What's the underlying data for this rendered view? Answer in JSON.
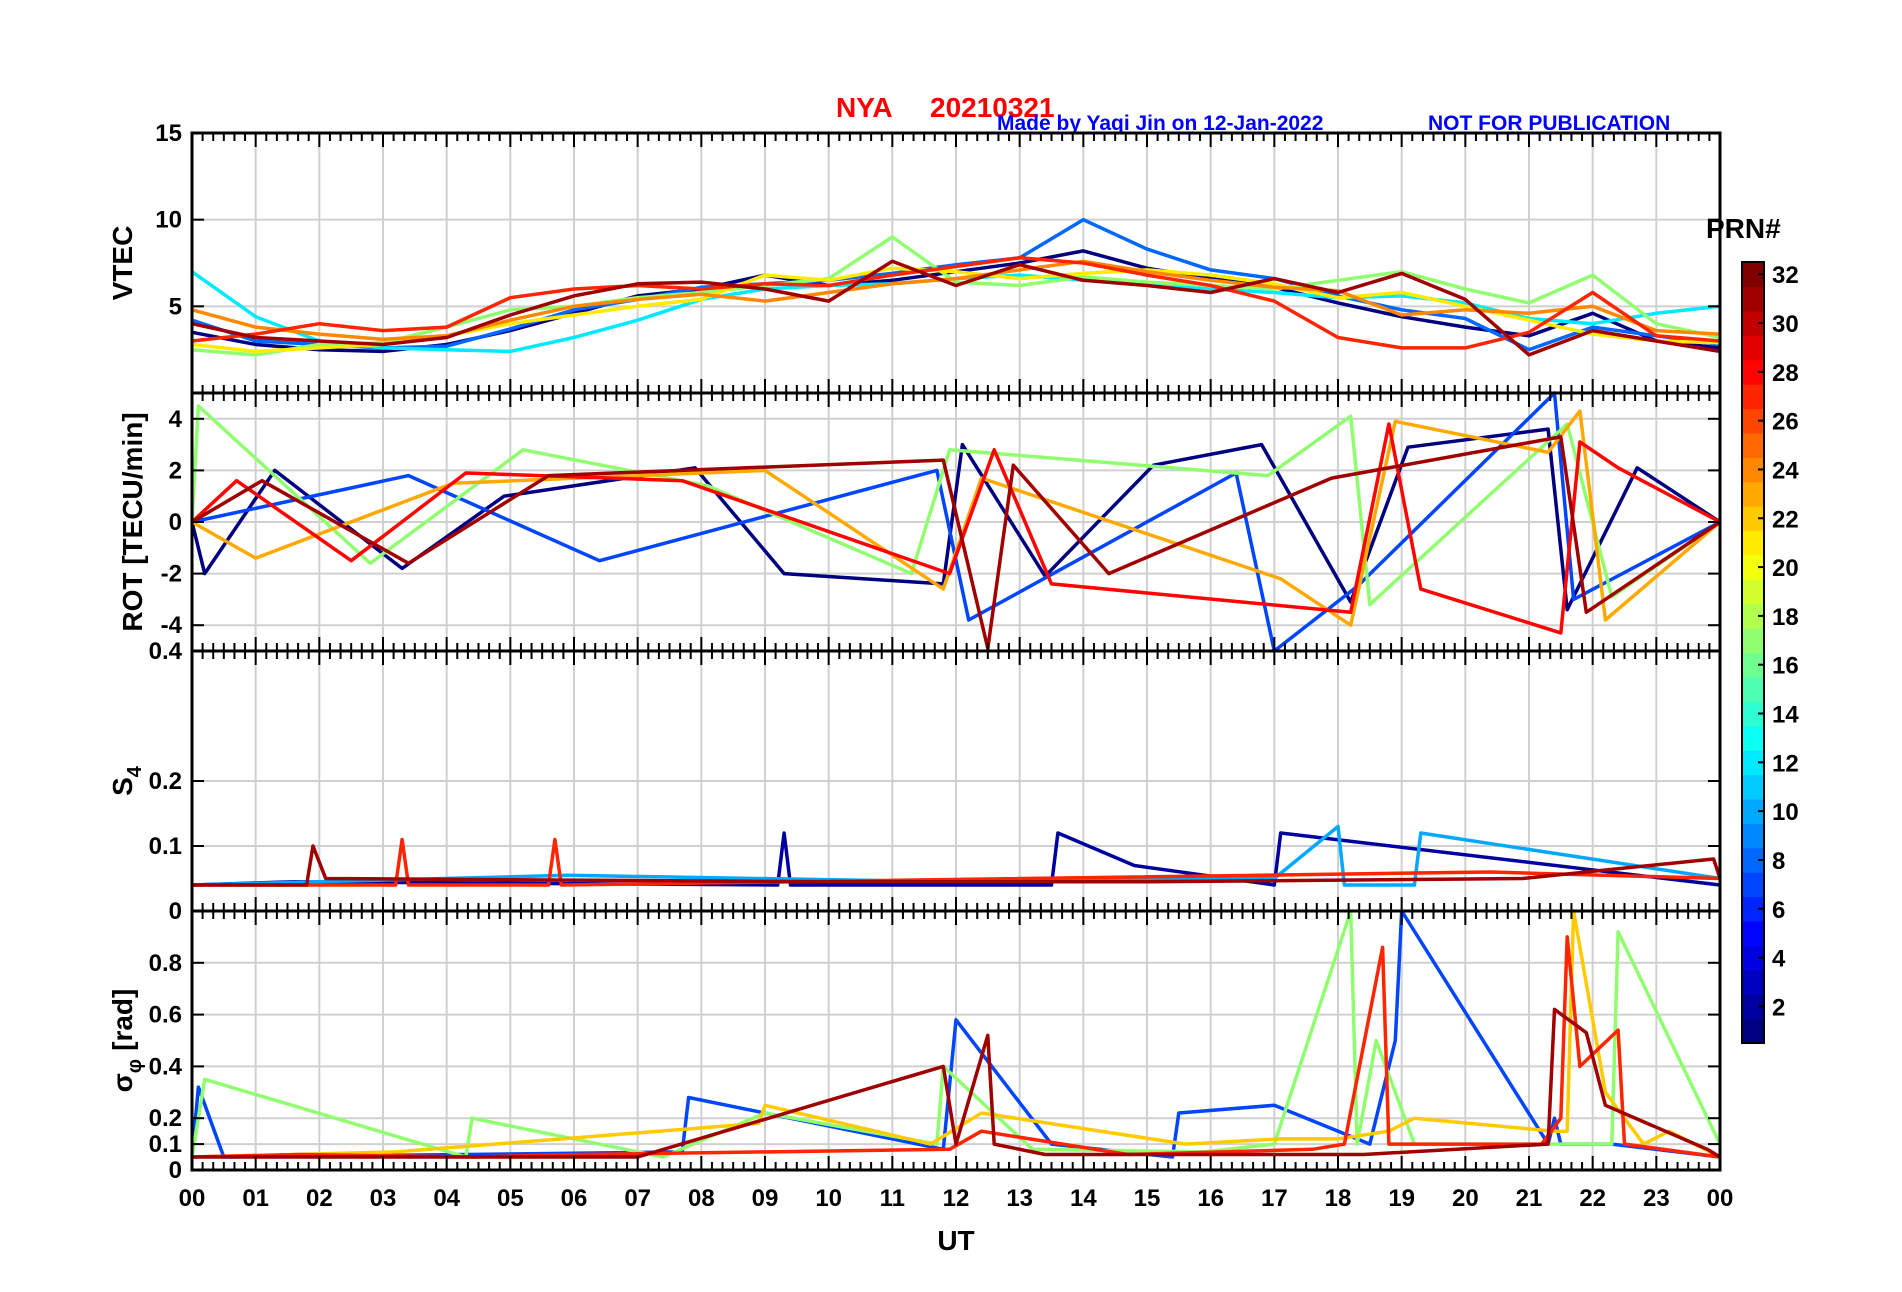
{
  "title": {
    "station": "NYA",
    "date": "20210321",
    "credit": "Made by Yaqi Jin on 12-Jan-2022",
    "notice": "NOT FOR PUBLICATION"
  },
  "colors": {
    "title": "#ff0000",
    "credit": "#0000ff",
    "grid": "#d0d0d0"
  },
  "x_axis": {
    "label": "UT",
    "ticks": [
      "00",
      "01",
      "02",
      "03",
      "04",
      "05",
      "06",
      "07",
      "08",
      "09",
      "10",
      "11",
      "12",
      "13",
      "14",
      "15",
      "16",
      "17",
      "18",
      "19",
      "20",
      "21",
      "22",
      "23",
      "00"
    ]
  },
  "panels": [
    {
      "ylabel": "VTEC",
      "ylim": [
        0,
        15
      ],
      "yticks": [
        5,
        10,
        15
      ],
      "tick_labels": [
        "5",
        "10",
        "15"
      ]
    },
    {
      "ylabel": "ROT [TECU/min]",
      "ylim": [
        -5,
        5
      ],
      "yticks": [
        -4,
        -2,
        0,
        2,
        4
      ],
      "tick_labels": [
        "-4",
        "-2",
        "0",
        "2",
        "4"
      ]
    },
    {
      "ylabel": "S",
      "ylabel_sub": "4",
      "ylim": [
        0,
        0.4
      ],
      "yticks": [
        0,
        0.1,
        0.2,
        0.4
      ],
      "tick_labels": [
        "0",
        "0.1",
        "0.2",
        "0.4"
      ]
    },
    {
      "ylabel": "σ",
      "ylabel_sub": "φ",
      "ylabel_suffix": "[rad]",
      "ylim": [
        0,
        1
      ],
      "yticks": [
        0,
        0.1,
        0.2,
        0.4,
        0.6,
        0.8
      ],
      "tick_labels": [
        "0",
        "0.1",
        "0.2",
        "0.4",
        "0.6",
        "0.8"
      ]
    }
  ],
  "colorbar": {
    "label": "PRN#",
    "range": [
      1,
      32
    ],
    "tick_labels": [
      "2",
      "4",
      "6",
      "8",
      "10",
      "12",
      "14",
      "16",
      "18",
      "20",
      "22",
      "24",
      "26",
      "28",
      "30",
      "32"
    ],
    "colormap": "jet"
  },
  "chart_data": [
    {
      "type": "line",
      "panel": "VTEC",
      "x_range_hours": [
        0,
        24
      ],
      "ylim": [
        0,
        15
      ],
      "series_note": "",
      "series": [
        {
          "prn": 1,
          "x": [
            0,
            1,
            2,
            3,
            4,
            5,
            6,
            7,
            8,
            9,
            10,
            11,
            12,
            13,
            14,
            15,
            16,
            17,
            18,
            19,
            20,
            21,
            22,
            23,
            24
          ],
          "values": [
            3.5,
            2.8,
            2.5,
            2.4,
            2.8,
            3.6,
            4.6,
            5.6,
            6.0,
            6.8,
            6.2,
            6.5,
            7.0,
            7.5,
            8.2,
            7.2,
            6.6,
            6.1,
            5.2,
            4.4,
            3.8,
            3.3,
            4.6,
            3.0,
            2.6
          ]
        },
        {
          "prn": 8,
          "x": [
            0,
            1,
            2,
            3,
            4,
            5,
            6,
            7,
            8,
            9,
            10,
            11,
            12,
            13,
            14,
            15,
            16,
            17,
            18,
            19,
            20,
            21,
            22,
            23,
            24
          ],
          "values": [
            4.2,
            3.0,
            2.8,
            2.6,
            2.7,
            3.7,
            4.8,
            5.4,
            6.1,
            6.3,
            6.5,
            6.9,
            7.4,
            7.8,
            10.0,
            8.3,
            7.1,
            6.6,
            5.6,
            4.8,
            4.3,
            2.5,
            3.8,
            3.3,
            2.8
          ]
        },
        {
          "prn": 12,
          "x": [
            0,
            1,
            2,
            3,
            4,
            5,
            6,
            7,
            8,
            9,
            10,
            11,
            12,
            13,
            14,
            15,
            16,
            17,
            18,
            19,
            20,
            21,
            22,
            23,
            24
          ],
          "values": [
            7.0,
            4.4,
            3.0,
            2.6,
            2.5,
            2.4,
            3.2,
            4.2,
            5.4,
            6.0,
            6.2,
            6.3,
            6.6,
            6.8,
            6.5,
            6.3,
            6.0,
            5.8,
            5.5,
            5.6,
            5.2,
            4.3,
            4.0,
            4.6,
            5.0
          ]
        },
        {
          "prn": 17,
          "x": [
            0,
            1,
            2,
            3,
            4,
            5,
            6,
            7,
            8,
            9,
            10,
            11,
            12,
            13,
            14,
            15,
            16,
            17,
            18,
            19,
            20,
            21,
            22,
            23,
            24
          ],
          "values": [
            2.5,
            2.2,
            2.8,
            2.9,
            3.8,
            4.8,
            5.0,
            5.5,
            5.8,
            6.2,
            6.6,
            9.0,
            6.4,
            6.2,
            6.7,
            6.4,
            6.2,
            6.0,
            6.5,
            7.0,
            6.0,
            5.2,
            6.8,
            4.0,
            3.2
          ]
        },
        {
          "prn": 21,
          "x": [
            0,
            1,
            2,
            3,
            4,
            5,
            6,
            7,
            8,
            9,
            10,
            11,
            12,
            13,
            14,
            15,
            16,
            17,
            18,
            19,
            20,
            21,
            22,
            23,
            24
          ],
          "values": [
            2.8,
            2.4,
            2.6,
            2.8,
            3.3,
            4.0,
            4.5,
            5.0,
            5.4,
            6.8,
            6.5,
            7.2,
            7.0,
            6.6,
            6.9,
            7.1,
            6.8,
            6.3,
            5.5,
            5.8,
            5.0,
            4.2,
            3.4,
            3.0,
            2.9
          ]
        },
        {
          "prn": 24,
          "x": [
            0,
            1,
            2,
            3,
            4,
            5,
            6,
            7,
            8,
            9,
            10,
            11,
            12,
            13,
            14,
            15,
            16,
            17,
            18,
            19,
            20,
            21,
            22,
            23,
            24
          ],
          "values": [
            4.8,
            3.8,
            3.4,
            3.1,
            3.3,
            4.2,
            5.0,
            5.4,
            5.7,
            5.3,
            5.8,
            6.3,
            6.6,
            7.1,
            7.6,
            7.0,
            6.5,
            6.1,
            5.9,
            4.5,
            4.8,
            4.6,
            5.0,
            3.6,
            3.4
          ]
        },
        {
          "prn": 27,
          "x": [
            0,
            1,
            2,
            3,
            4,
            5,
            6,
            7,
            8,
            9,
            10,
            11,
            12,
            13,
            14,
            15,
            16,
            17,
            18,
            19,
            20,
            21,
            22,
            23,
            24
          ],
          "values": [
            3.0,
            3.4,
            4.0,
            3.6,
            3.8,
            5.5,
            6.0,
            6.2,
            6.0,
            6.3,
            6.2,
            6.8,
            7.3,
            7.8,
            7.5,
            6.8,
            6.2,
            5.3,
            3.2,
            2.6,
            2.6,
            3.5,
            5.8,
            3.3,
            3.0
          ]
        },
        {
          "prn": 31,
          "x": [
            0,
            1,
            2,
            3,
            4,
            5,
            6,
            7,
            8,
            9,
            10,
            11,
            12,
            13,
            14,
            15,
            16,
            17,
            18,
            19,
            20,
            21,
            22,
            23,
            24
          ],
          "values": [
            4.0,
            3.2,
            3.0,
            2.8,
            3.2,
            4.5,
            5.6,
            6.3,
            6.4,
            6.0,
            5.3,
            7.6,
            6.2,
            7.4,
            6.5,
            6.2,
            5.8,
            6.6,
            5.8,
            6.9,
            5.4,
            2.2,
            3.6,
            3.0,
            2.4
          ]
        }
      ]
    },
    {
      "type": "line",
      "panel": "ROT",
      "x_range_hours": [
        0,
        24
      ],
      "ylim": [
        -5,
        5
      ],
      "series_note": "",
      "series": [
        {
          "prn": 1,
          "x": [
            0,
            0.2,
            1.3,
            3.3,
            4.9,
            7.9,
            9.3,
            11.8,
            12.1,
            13.4,
            15.1,
            16.8,
            18.2,
            19.1,
            21.3,
            21.6,
            22.7,
            24
          ],
          "values": [
            0,
            -2.0,
            2.0,
            -1.8,
            1.0,
            2.1,
            -2.0,
            -2.4,
            3.0,
            -2.1,
            2.2,
            3.0,
            -3.1,
            2.9,
            3.6,
            -3.4,
            2.1,
            0
          ]
        },
        {
          "prn": 7,
          "x": [
            0,
            3.4,
            6.4,
            11.7,
            12.2,
            16.4,
            17.0,
            18.3,
            21.4,
            21.7,
            24
          ],
          "values": [
            0,
            1.8,
            -1.5,
            2.0,
            -3.8,
            1.9,
            -5.0,
            -2.5,
            5.0,
            -3.0,
            0
          ]
        },
        {
          "prn": 17,
          "x": [
            0,
            0.1,
            2.8,
            5.2,
            8.1,
            11.3,
            11.9,
            16.9,
            18.2,
            18.5,
            21.6,
            22.3,
            24
          ],
          "values": [
            0,
            4.5,
            -1.6,
            2.8,
            1.4,
            -2.0,
            2.8,
            1.8,
            4.1,
            -3.2,
            3.8,
            -2.9,
            0
          ]
        },
        {
          "prn": 23,
          "x": [
            0,
            1.0,
            4.1,
            9.0,
            11.8,
            12.4,
            17.1,
            18.2,
            18.9,
            21.3,
            21.8,
            22.2,
            24
          ],
          "values": [
            0,
            -1.4,
            1.5,
            2.0,
            -2.6,
            1.7,
            -2.2,
            -4.0,
            3.9,
            2.7,
            4.3,
            -3.8,
            0
          ]
        },
        {
          "prn": 28,
          "x": [
            0,
            0.7,
            2.5,
            4.3,
            7.7,
            11.9,
            12.6,
            13.5,
            18.2,
            18.8,
            19.3,
            21.5,
            21.8,
            22.4,
            24
          ],
          "values": [
            0,
            1.6,
            -1.5,
            1.9,
            1.6,
            -2.0,
            2.8,
            -2.4,
            -3.5,
            3.8,
            -2.6,
            -4.3,
            3.1,
            2.1,
            0
          ]
        },
        {
          "prn": 31,
          "x": [
            0,
            1.1,
            3.4,
            5.6,
            11.8,
            12.5,
            12.9,
            14.4,
            17.9,
            21.5,
            21.9,
            24
          ],
          "values": [
            0,
            1.6,
            -1.6,
            1.8,
            2.4,
            -4.9,
            2.2,
            -2.0,
            1.7,
            3.3,
            -3.5,
            0
          ]
        }
      ]
    },
    {
      "type": "line",
      "panel": "S4",
      "x_range_hours": [
        0,
        24
      ],
      "ylim": [
        0,
        0.4
      ],
      "series_note": "",
      "series": [
        {
          "prn": 2,
          "x": [
            0,
            1.6,
            9.2,
            9.3,
            9.4,
            13.5,
            13.6,
            14.8,
            17.0,
            17.1,
            24
          ],
          "values": [
            0.04,
            0.045,
            0.04,
            0.12,
            0.04,
            0.04,
            0.12,
            0.07,
            0.04,
            0.12,
            0.04
          ]
        },
        {
          "prn": 10,
          "x": [
            0,
            5.9,
            12.0,
            17.0,
            18.0,
            18.1,
            19.2,
            19.3,
            24
          ],
          "values": [
            0.04,
            0.055,
            0.045,
            0.05,
            0.13,
            0.04,
            0.04,
            0.12,
            0.05
          ]
        },
        {
          "prn": 27,
          "x": [
            0,
            3.2,
            3.3,
            3.4,
            5.6,
            5.7,
            5.8,
            20.4,
            24
          ],
          "values": [
            0.04,
            0.04,
            0.11,
            0.04,
            0.04,
            0.11,
            0.04,
            0.06,
            0.05
          ]
        },
        {
          "prn": 31,
          "x": [
            0,
            1.8,
            1.9,
            2.1,
            10.0,
            15.0,
            20.9,
            23.9,
            24
          ],
          "values": [
            0.04,
            0.04,
            0.1,
            0.05,
            0.045,
            0.045,
            0.05,
            0.08,
            0.05
          ]
        }
      ]
    },
    {
      "type": "line",
      "panel": "sigma_phi",
      "x_range_hours": [
        0,
        24
      ],
      "ylim": [
        0,
        1
      ],
      "series_note": "",
      "series": [
        {
          "prn": 7,
          "x": [
            0,
            0.1,
            0.5,
            4.3,
            7.7,
            7.8,
            11.8,
            12.0,
            13.5,
            15.4,
            15.5,
            17.0,
            18.5,
            18.9,
            19.0,
            21.3,
            21.4,
            21.5,
            22.3,
            24
          ],
          "values": [
            0.05,
            0.32,
            0.05,
            0.06,
            0.07,
            0.28,
            0.08,
            0.58,
            0.1,
            0.05,
            0.22,
            0.25,
            0.1,
            0.5,
            1.0,
            0.1,
            0.2,
            0.1,
            0.1,
            0.05
          ]
        },
        {
          "prn": 17,
          "x": [
            0,
            0.2,
            4.3,
            4.4,
            7.4,
            9.0,
            11.7,
            11.8,
            13.2,
            15.9,
            17.0,
            18.2,
            18.3,
            18.6,
            19.2,
            21.6,
            22.3,
            22.4,
            24
          ],
          "values": [
            0.05,
            0.35,
            0.05,
            0.2,
            0.05,
            0.22,
            0.1,
            0.4,
            0.08,
            0.07,
            0.1,
            1.0,
            0.1,
            0.5,
            0.1,
            0.1,
            0.1,
            0.92,
            0.1
          ]
        },
        {
          "prn": 22,
          "x": [
            0,
            3.2,
            8.9,
            9.0,
            11.6,
            12.4,
            15.6,
            17.1,
            18.0,
            18.8,
            19.2,
            21.4,
            21.6,
            21.7,
            22.2,
            22.8,
            23.2,
            24
          ],
          "values": [
            0.05,
            0.07,
            0.18,
            0.25,
            0.1,
            0.22,
            0.1,
            0.12,
            0.12,
            0.15,
            0.2,
            0.15,
            0.15,
            1.0,
            0.3,
            0.1,
            0.15,
            0.05
          ]
        },
        {
          "prn": 27,
          "x": [
            0,
            1.7,
            4.4,
            6.1,
            11.9,
            12.4,
            14.7,
            17.6,
            18.1,
            18.7,
            18.8,
            20.3,
            21.2,
            21.5,
            21.6,
            21.8,
            22.4,
            22.5,
            24
          ],
          "values": [
            0.05,
            0.06,
            0.05,
            0.06,
            0.08,
            0.15,
            0.06,
            0.08,
            0.1,
            0.86,
            0.1,
            0.1,
            0.1,
            0.2,
            0.9,
            0.4,
            0.54,
            0.1,
            0.05
          ]
        },
        {
          "prn": 31,
          "x": [
            0,
            2.0,
            7.0,
            11.8,
            12.0,
            12.5,
            12.6,
            13.4,
            16.0,
            18.4,
            21.3,
            21.4,
            21.9,
            22.2,
            23.8,
            24
          ],
          "values": [
            0.05,
            0.05,
            0.05,
            0.4,
            0.1,
            0.52,
            0.1,
            0.06,
            0.06,
            0.06,
            0.1,
            0.62,
            0.53,
            0.25,
            0.08,
            0.05
          ]
        }
      ]
    }
  ]
}
